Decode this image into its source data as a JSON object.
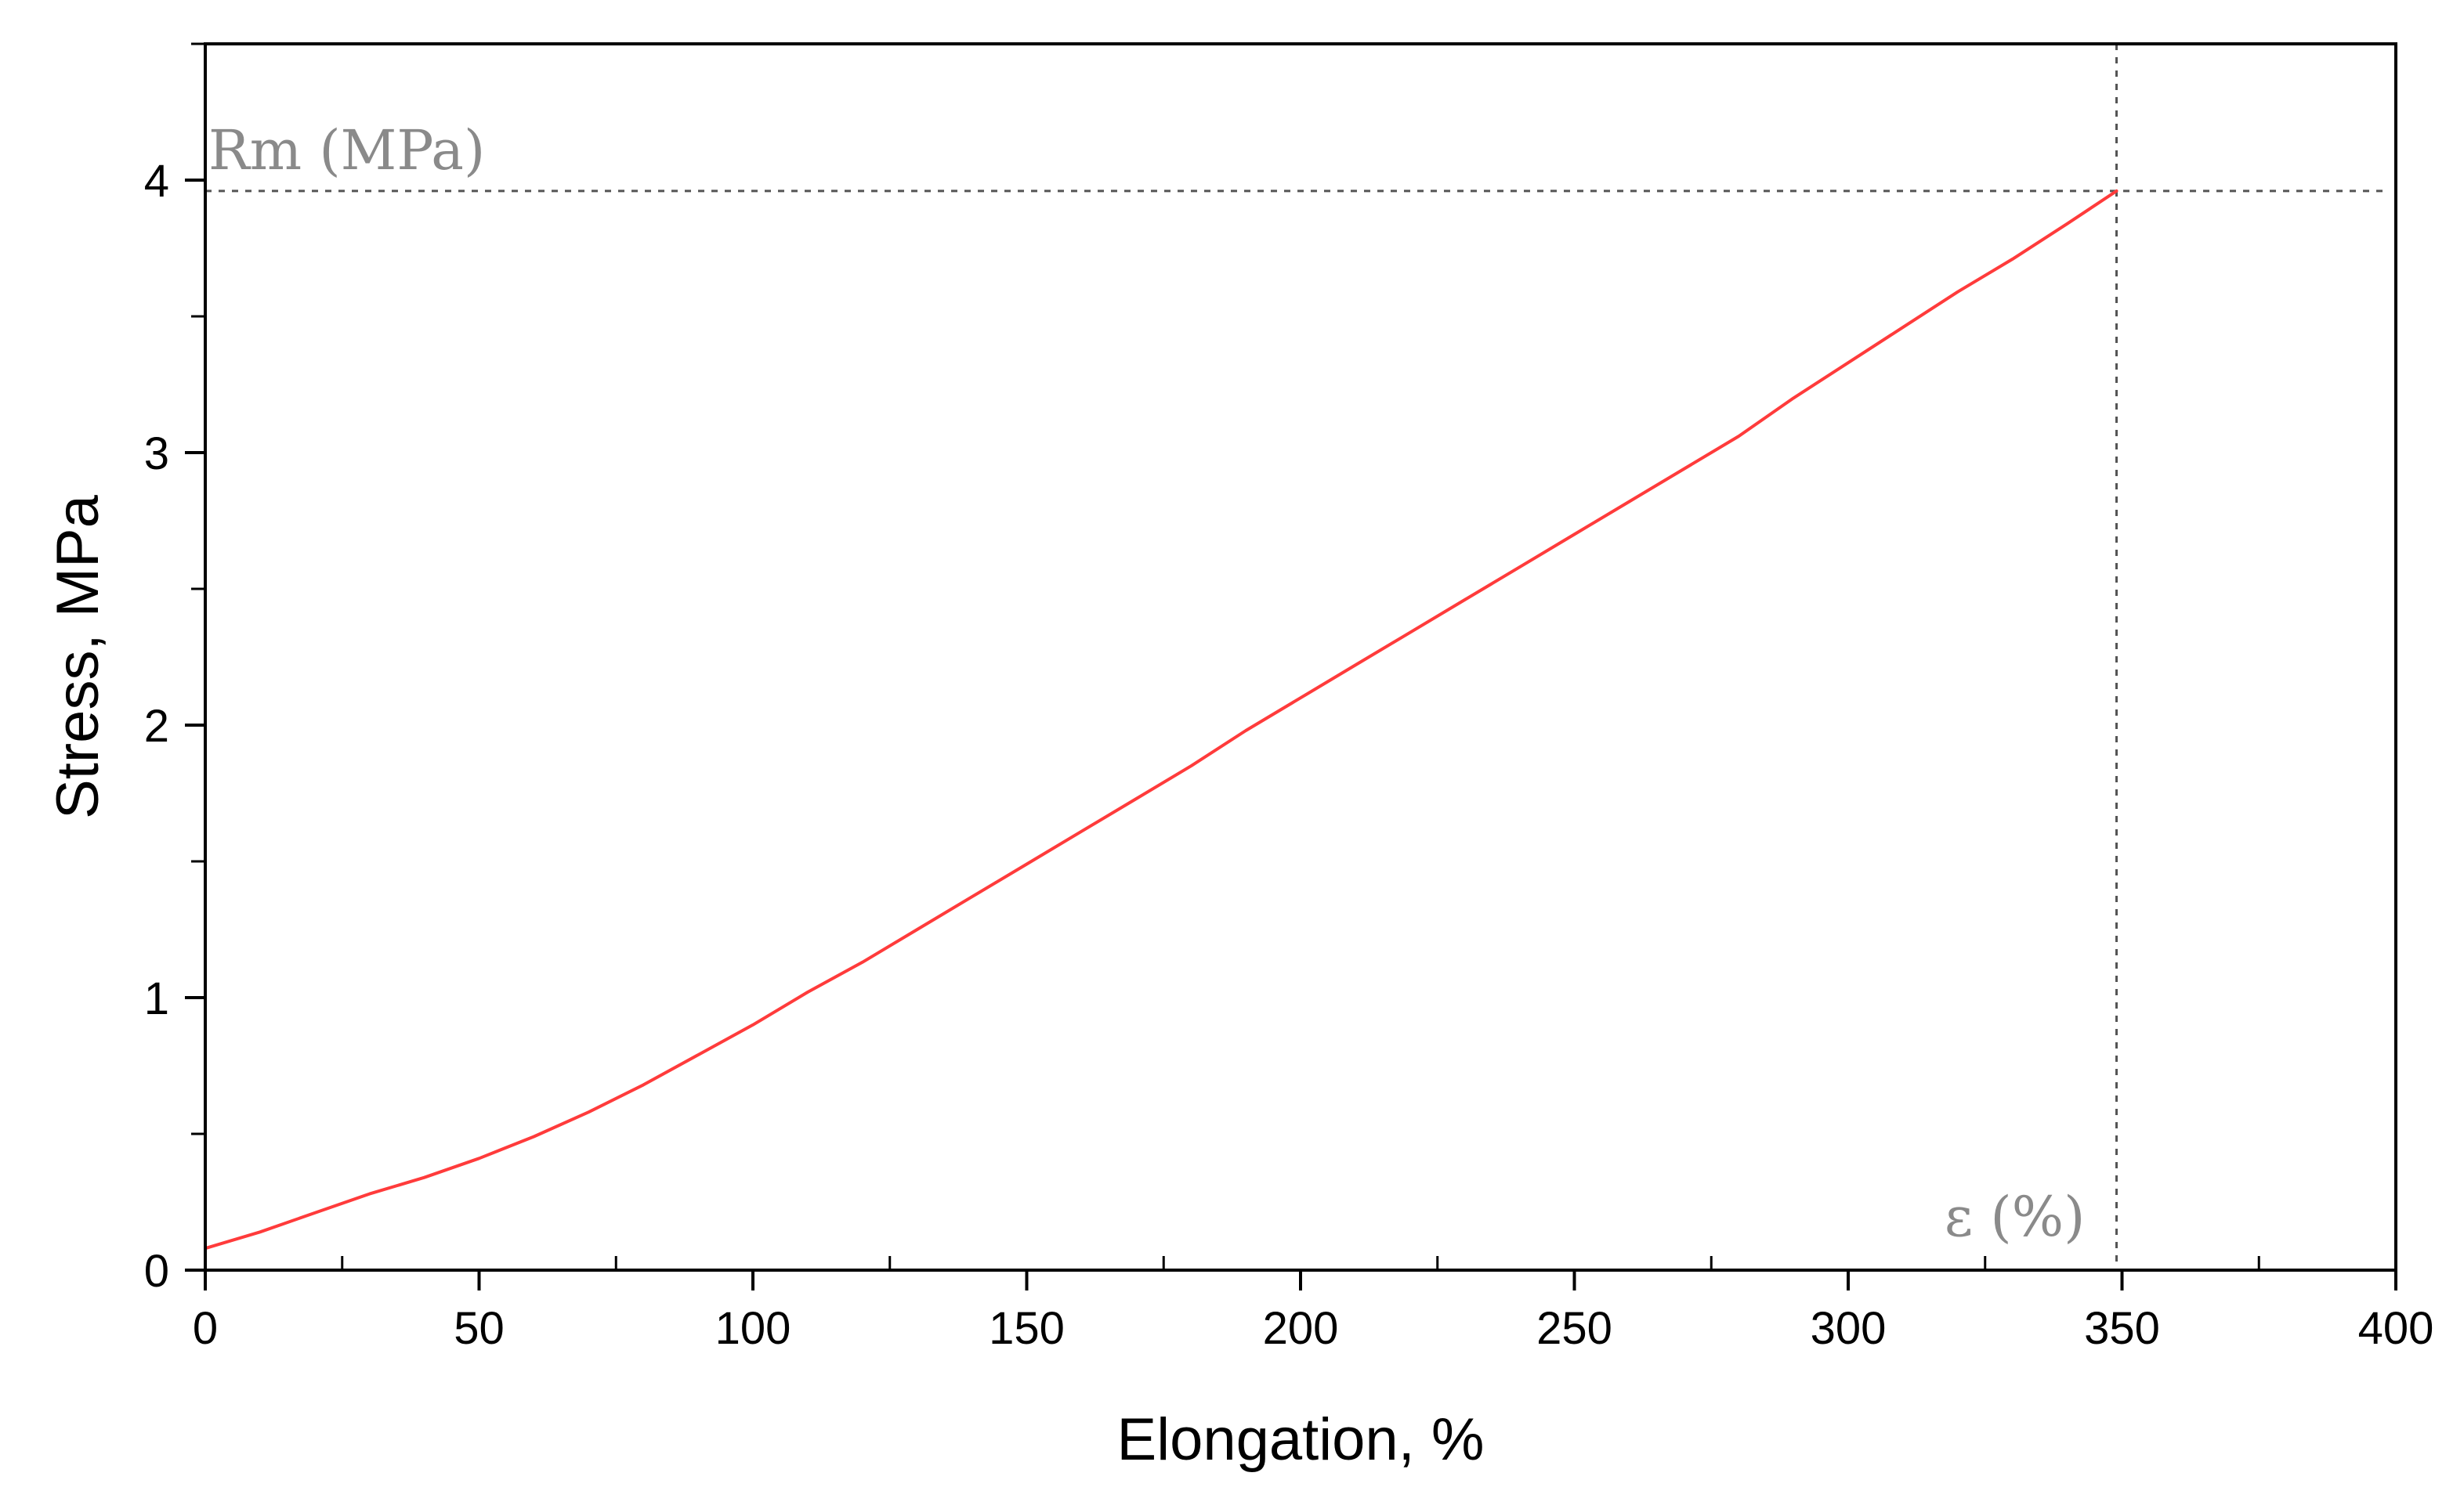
{
  "chart_data": {
    "type": "line",
    "xlabel": "Elongation, %",
    "ylabel": "Stress, MPa",
    "xlim": [
      0,
      400
    ],
    "ylim": [
      0,
      4.5
    ],
    "x_ticks": [
      0,
      50,
      100,
      150,
      200,
      250,
      300,
      350,
      400
    ],
    "y_ticks": [
      0,
      1,
      2,
      3,
      4
    ],
    "x_minor_step": 25,
    "y_minor_step": 0.5,
    "grid": false,
    "series": [
      {
        "color": "#ff3b3b",
        "x": [
          0,
          10,
          20,
          30,
          40,
          50,
          60,
          70,
          80,
          90,
          100,
          110,
          120,
          130,
          140,
          150,
          160,
          170,
          180,
          190,
          200,
          210,
          220,
          230,
          240,
          250,
          260,
          270,
          280,
          290,
          300,
          310,
          320,
          330,
          340,
          349
        ],
        "y": [
          0.08,
          0.14,
          0.21,
          0.28,
          0.34,
          0.41,
          0.49,
          0.58,
          0.68,
          0.79,
          0.9,
          1.02,
          1.13,
          1.25,
          1.37,
          1.49,
          1.61,
          1.73,
          1.85,
          1.98,
          2.1,
          2.22,
          2.34,
          2.46,
          2.58,
          2.7,
          2.82,
          2.94,
          3.06,
          3.2,
          3.33,
          3.46,
          3.59,
          3.71,
          3.84,
          3.96
        ]
      }
    ],
    "reference_lines": {
      "color": "#555555",
      "y_value": 3.96,
      "x_value": 349
    },
    "annotations": {
      "rm_label": "Rm (MPa)",
      "eps_label": "ε (%)"
    }
  }
}
